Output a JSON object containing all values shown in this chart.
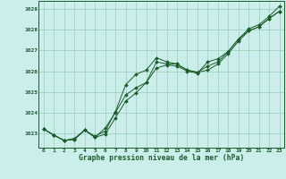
{
  "xlabel": "Graphe pression niveau de la mer (hPa)",
  "background_color": "#cceeea",
  "grid_color": "#99ccbb",
  "line_color": "#1a5c2a",
  "spine_color": "#1a5c2a",
  "x_ticks": [
    0,
    1,
    2,
    3,
    4,
    5,
    6,
    7,
    8,
    9,
    10,
    11,
    12,
    13,
    14,
    15,
    16,
    17,
    18,
    19,
    20,
    21,
    22,
    23
  ],
  "ylim": [
    1022.3,
    1029.4
  ],
  "xlim": [
    -0.5,
    23.5
  ],
  "yticks": [
    1023,
    1024,
    1025,
    1026,
    1027,
    1028,
    1029
  ],
  "series": [
    [
      1023.2,
      1022.9,
      1022.65,
      1022.75,
      1023.15,
      1022.85,
      1023.1,
      1024.05,
      1025.35,
      1025.85,
      1026.05,
      1026.65,
      1026.45,
      1026.35,
      1026.05,
      1025.95,
      1026.05,
      1026.35,
      1026.85,
      1027.45,
      1027.95,
      1028.15,
      1028.55,
      1028.9
    ],
    [
      1023.2,
      1022.9,
      1022.65,
      1022.7,
      1023.15,
      1022.8,
      1023.25,
      1024.0,
      1024.85,
      1025.2,
      1025.45,
      1026.15,
      1026.3,
      1026.25,
      1026.0,
      1025.9,
      1026.45,
      1026.6,
      1026.95,
      1027.55,
      1028.05,
      1028.25,
      1028.65,
      1029.15
    ],
    [
      1023.2,
      1022.9,
      1022.65,
      1022.7,
      1023.15,
      1022.8,
      1022.95,
      1023.75,
      1024.55,
      1024.95,
      1025.45,
      1026.45,
      1026.35,
      1026.35,
      1026.05,
      1025.95,
      1026.25,
      1026.45,
      1026.95,
      1027.55,
      1027.95,
      1028.15,
      1028.55,
      1028.9
    ]
  ]
}
